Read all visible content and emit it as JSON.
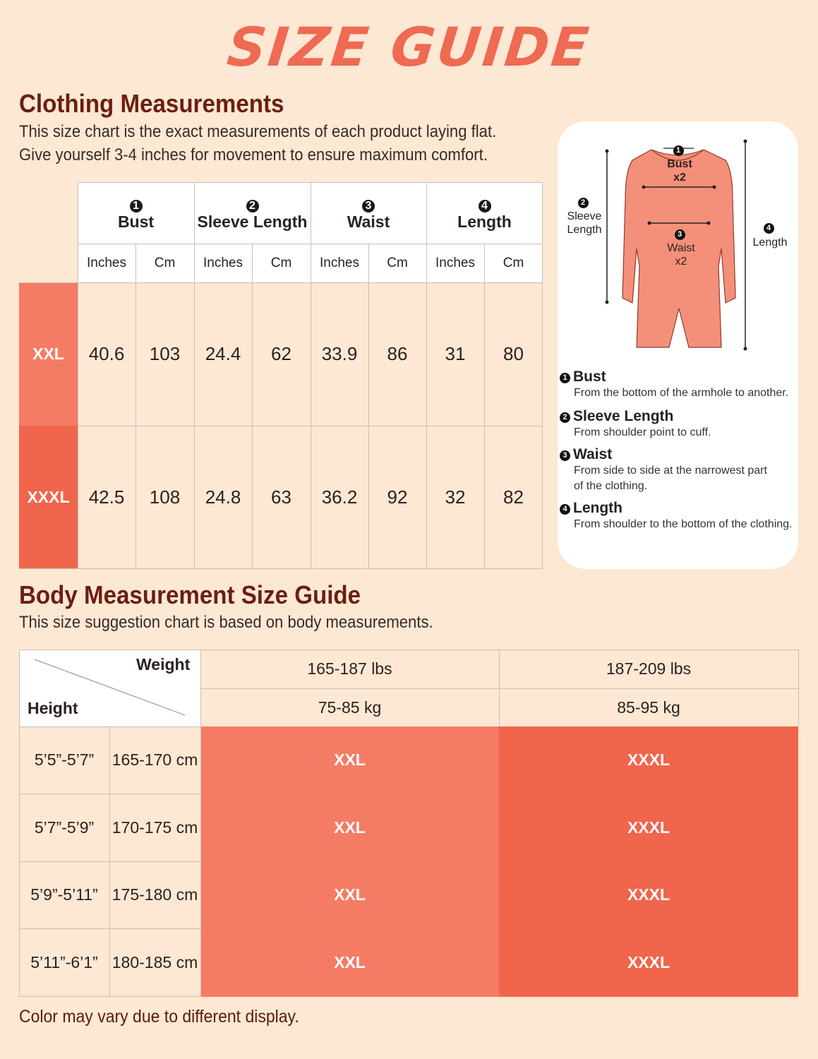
{
  "title": "SIZE GUIDE",
  "clothing": {
    "heading": "Clothing Measurements",
    "desc_line1": "This size chart is the exact measurements of each product laying flat.",
    "desc_line2": "Give yourself 3-4 inches for movement to ensure maximum comfort.",
    "columns": [
      {
        "num": "1",
        "label": "Bust"
      },
      {
        "num": "2",
        "label": "Sleeve Length"
      },
      {
        "num": "3",
        "label": "Waist"
      },
      {
        "num": "4",
        "label": "Length"
      }
    ],
    "units": [
      "Inches",
      "Cm",
      "Inches",
      "Cm",
      "Inches",
      "Cm",
      "Inches",
      "Cm"
    ],
    "rows": [
      {
        "size": "XXL",
        "values": [
          "40.6",
          "103",
          "24.4",
          "62",
          "33.9",
          "86",
          "31",
          "80"
        ]
      },
      {
        "size": "XXXL",
        "values": [
          "42.5",
          "108",
          "24.8",
          "63",
          "36.2",
          "92",
          "32",
          "82"
        ]
      }
    ]
  },
  "diagram": {
    "labels": {
      "bust_num": "1",
      "bust": "Bust",
      "bust_x": "x2",
      "sleeve_num": "2",
      "sleeve_l1": "Sleeve",
      "sleeve_l2": "Length",
      "waist_num": "3",
      "waist": "Waist",
      "waist_x": "x2",
      "length_num": "4",
      "length": "Length"
    },
    "legend": [
      {
        "num": "1",
        "title": "Bust",
        "desc": [
          "From the bottom of the armhole to another."
        ]
      },
      {
        "num": "2",
        "title": "Sleeve Length",
        "desc": [
          "From shoulder point to cuff."
        ]
      },
      {
        "num": "3",
        "title": "Waist",
        "desc": [
          "From side to side at the narrowest part",
          "of the clothing."
        ]
      },
      {
        "num": "4",
        "title": "Length",
        "desc": [
          "From shoulder to the bottom of the clothing."
        ]
      }
    ]
  },
  "body": {
    "heading": "Body Measurement Size Guide",
    "desc": "This size suggestion chart is based on body measurements.",
    "weight_label": "Weight",
    "height_label": "Height",
    "weights": [
      {
        "lbs": "165-187 lbs",
        "kg": "75-85 kg"
      },
      {
        "lbs": "187-209 lbs",
        "kg": "85-95 kg"
      }
    ],
    "rows": [
      {
        "ft": "5’5”-5’7”",
        "cm": "165-170 cm",
        "sizes": [
          "XXL",
          "XXXL"
        ]
      },
      {
        "ft": "5’7”-5’9”",
        "cm": "170-175 cm",
        "sizes": [
          "XXL",
          "XXXL"
        ]
      },
      {
        "ft": "5’9”-5’11”",
        "cm": "175-180 cm",
        "sizes": [
          "XXL",
          "XXXL"
        ]
      },
      {
        "ft": "5’11”-6’1”",
        "cm": "180-185 cm",
        "sizes": [
          "XXL",
          "XXXL"
        ]
      }
    ]
  },
  "footer": "Color may vary due to different display.",
  "colors": {
    "xxl": "#f47c65",
    "xxxl": "#f0654c",
    "title": "#ef6a52",
    "heading": "#6b1e12"
  }
}
